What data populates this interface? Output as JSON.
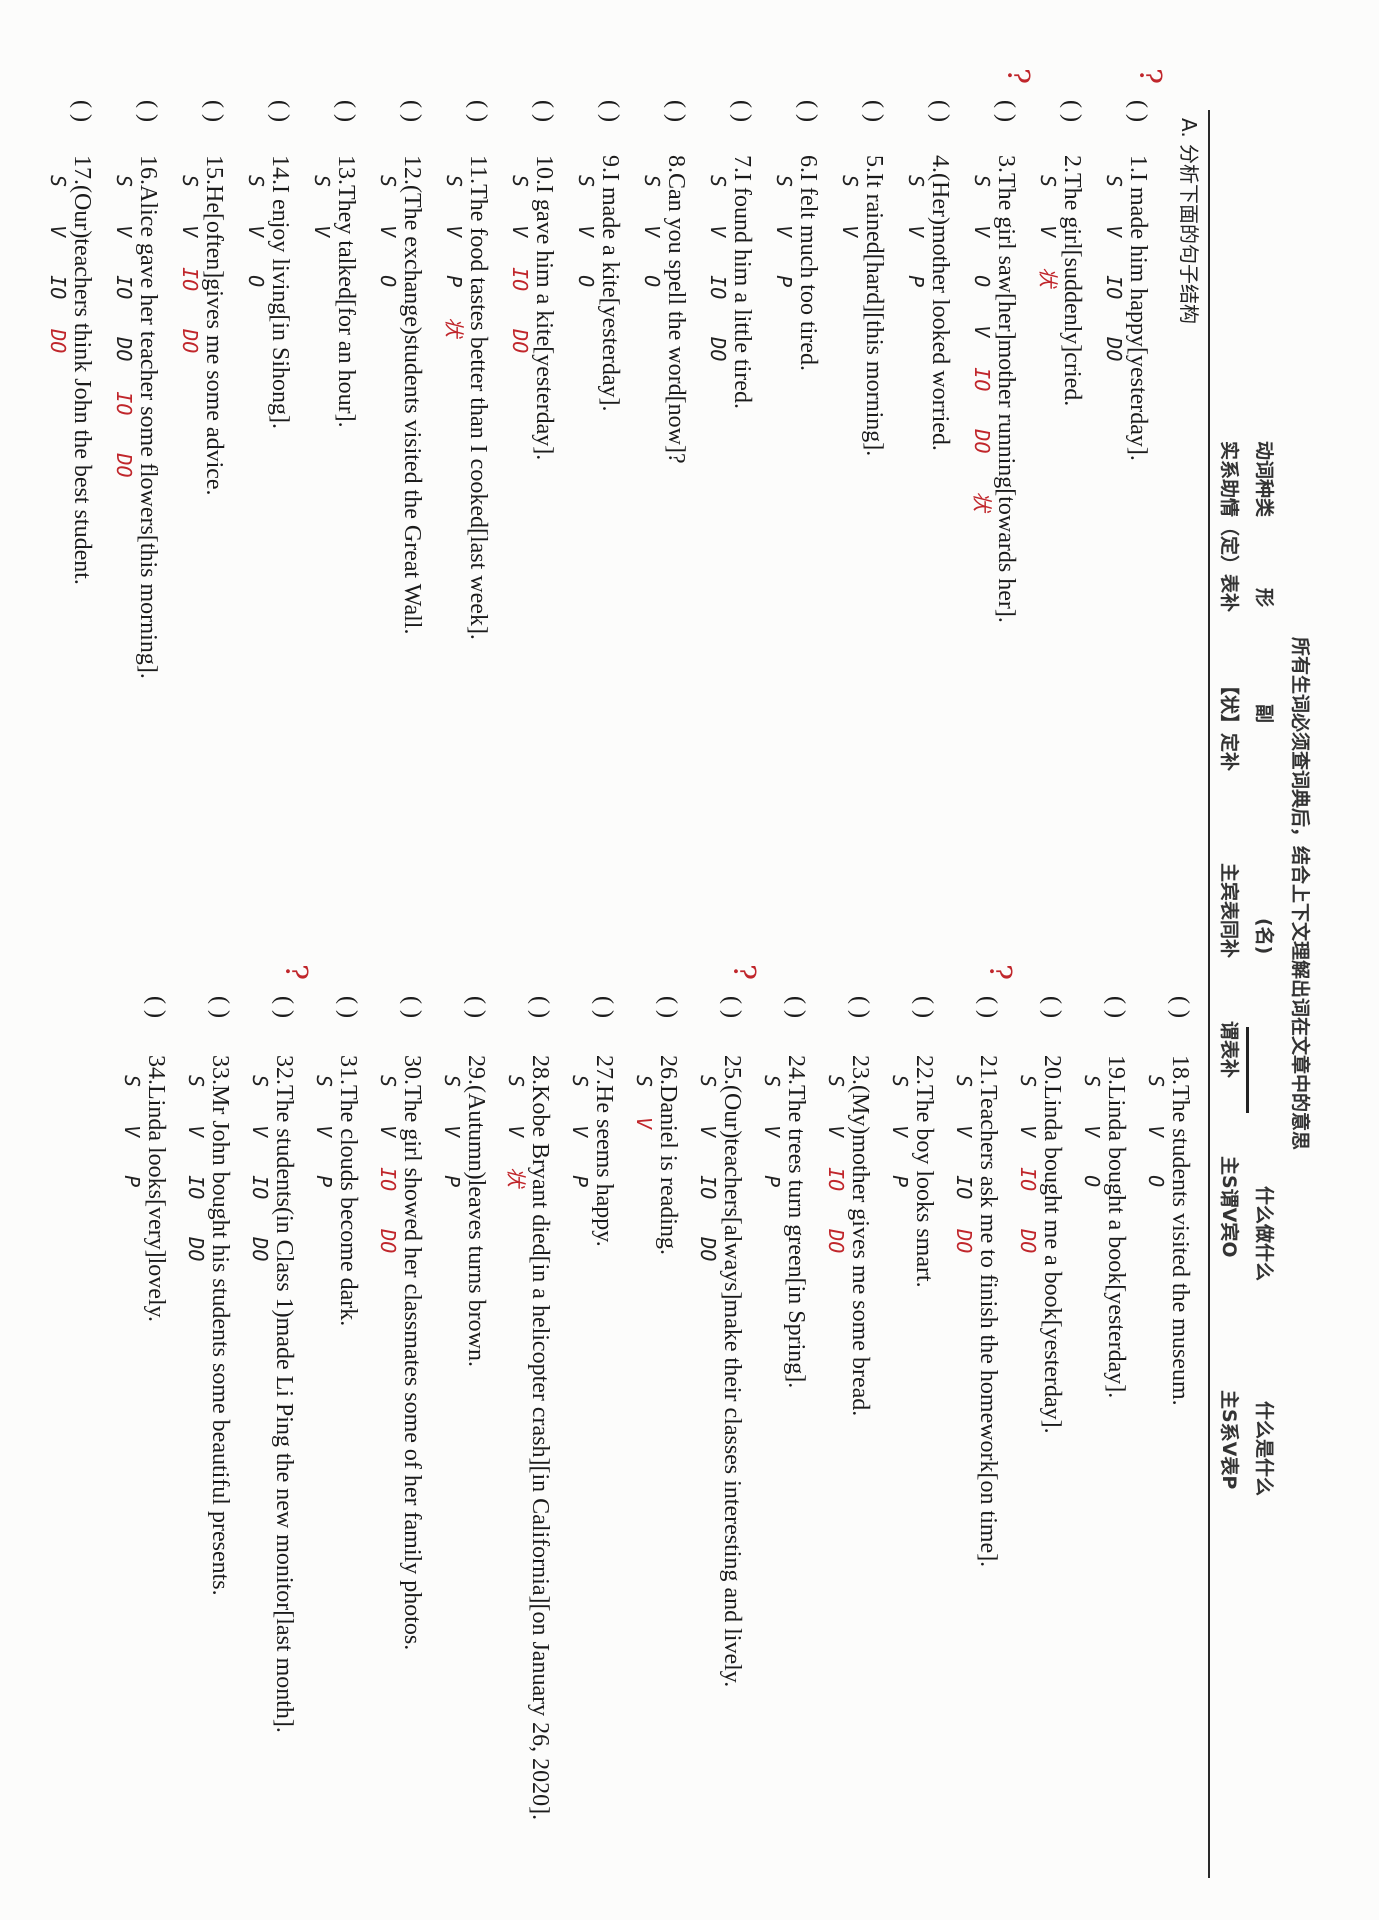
{
  "header": {
    "instruction": "所有生词必须查词典后，结合上下文理解出词在文章中的意思",
    "row2": [
      "动词种类",
      "形",
      "副",
      "(名)",
      "什么做什么",
      "什么是什么"
    ],
    "row3": [
      "实系助情（定）表补",
      "【状】定补",
      "主宾表同补",
      "谓表补",
      "主S谓V宾O",
      "主S系V表P"
    ]
  },
  "section": {
    "title": "A. 分析下面的句子结构"
  },
  "colors": {
    "ink": "#1b1b1b",
    "red_pen": "#c0262b"
  },
  "items": [
    {
      "n": 1,
      "text": "1.I made him happy[yesterday].",
      "marks": "S V IO DO",
      "red": "",
      "flag": "?"
    },
    {
      "n": 2,
      "text": "2.The girl[suddenly]cried.",
      "marks": "S V",
      "red": "状",
      "flag": ""
    },
    {
      "n": 3,
      "text": "3.The girl saw[her]mother running[towards her].",
      "marks": "S V O V",
      "red": "IO DO 状",
      "flag": "?"
    },
    {
      "n": 4,
      "text": "4.(Her)mother looked worried.",
      "marks": "S V P",
      "red": "",
      "flag": ""
    },
    {
      "n": 5,
      "text": "5.It rained[hard][this morning].",
      "marks": "S V",
      "red": "",
      "flag": ""
    },
    {
      "n": 6,
      "text": "6.I felt much too tired.",
      "marks": "S V P",
      "red": "",
      "flag": ""
    },
    {
      "n": 7,
      "text": "7.I found him a little tired.",
      "marks": "S V IO DO",
      "red": "",
      "flag": ""
    },
    {
      "n": 8,
      "text": "8.Can you spell the word[now]?",
      "marks": "S V O",
      "red": "",
      "flag": ""
    },
    {
      "n": 9,
      "text": "9.I made a kite[yesterday].",
      "marks": "S V O",
      "red": "",
      "flag": ""
    },
    {
      "n": 10,
      "text": "10.I gave him a kite[yesterday].",
      "marks": "S V",
      "red": "IO DO",
      "flag": ""
    },
    {
      "n": 11,
      "text": "11.The food tastes better than I cooked[last week].",
      "marks": "S V P",
      "red": "状",
      "flag": ""
    },
    {
      "n": 12,
      "text": "12.(The exchange)students visited the Great Wall.",
      "marks": "S V O",
      "red": "",
      "flag": ""
    },
    {
      "n": 13,
      "text": "13.They talked[for an hour].",
      "marks": "S V",
      "red": "",
      "flag": ""
    },
    {
      "n": 14,
      "text": "14.I enjoy living[in Sihong].",
      "marks": "S V O",
      "red": "",
      "flag": ""
    },
    {
      "n": 15,
      "text": "15.He[often]gives me some advice.",
      "marks": "S V",
      "red": "IO DO",
      "flag": ""
    },
    {
      "n": 16,
      "text": "16.Alice gave her teacher some flowers[this morning].",
      "marks": "S V IO DO",
      "red": "IO DO",
      "flag": ""
    },
    {
      "n": 17,
      "text": "17.(Our)teachers think John the best student.",
      "marks": "S V IO",
      "red": "DO",
      "flag": ""
    },
    {
      "n": 18,
      "text": "18.The students visited the museum.",
      "marks": "S V O",
      "red": "",
      "flag": ""
    },
    {
      "n": 19,
      "text": "19.Linda bought a book[yesterday].",
      "marks": "S V O",
      "red": "",
      "flag": ""
    },
    {
      "n": 20,
      "text": "20.Linda bought me a book[yesterday].",
      "marks": "S V",
      "red": "IO DO",
      "flag": ""
    },
    {
      "n": 21,
      "text": "21.Teachers ask me to finish the homework[on time].",
      "marks": "S V IO",
      "red": "DO",
      "flag": "?"
    },
    {
      "n": 22,
      "text": "22.The boy looks smart.",
      "marks": "S V P",
      "red": "",
      "flag": ""
    },
    {
      "n": 23,
      "text": "23.(My)mother gives me some bread.",
      "marks": "S V",
      "red": "IO DO",
      "flag": ""
    },
    {
      "n": 24,
      "text": "24.The trees turn green[in Spring].",
      "marks": "S V P",
      "red": "",
      "flag": ""
    },
    {
      "n": 25,
      "text": "25.(Our)teachers[always]make their classes interesting and lively.",
      "marks": "S V IO DO",
      "red": "",
      "flag": "?"
    },
    {
      "n": 26,
      "text": "26.Daniel is reading.",
      "marks": "S",
      "red": "V",
      "flag": ""
    },
    {
      "n": 27,
      "text": "27.He seems happy.",
      "marks": "S V P",
      "red": "",
      "flag": ""
    },
    {
      "n": 28,
      "text": "28.Kobe Bryant died[in a helicopter crash][in California][on January 26, 2020].",
      "marks": "S V",
      "red": "状",
      "flag": ""
    },
    {
      "n": 29,
      "text": "29.(Autumn)leaves turns brown.",
      "marks": "S V P",
      "red": "",
      "flag": ""
    },
    {
      "n": 30,
      "text": "30.The girl showed her classmates some of her family photos.",
      "marks": "S V",
      "red": "IO DO",
      "flag": ""
    },
    {
      "n": 31,
      "text": "31.The clouds become dark.",
      "marks": "S V P",
      "red": "",
      "flag": ""
    },
    {
      "n": 32,
      "text": "32.The students(in Class 1)made Li Ping the new monitor[last month].",
      "marks": "S V IO DO",
      "red": "",
      "flag": "?"
    },
    {
      "n": 33,
      "text": "33.Mr John bought his students some beautiful presents.",
      "marks": "S V IO DO",
      "red": "",
      "flag": ""
    },
    {
      "n": 34,
      "text": "34.Linda looks[very]lovely.",
      "marks": "S V P",
      "red": "",
      "flag": ""
    }
  ],
  "answer_paren": "(      )"
}
